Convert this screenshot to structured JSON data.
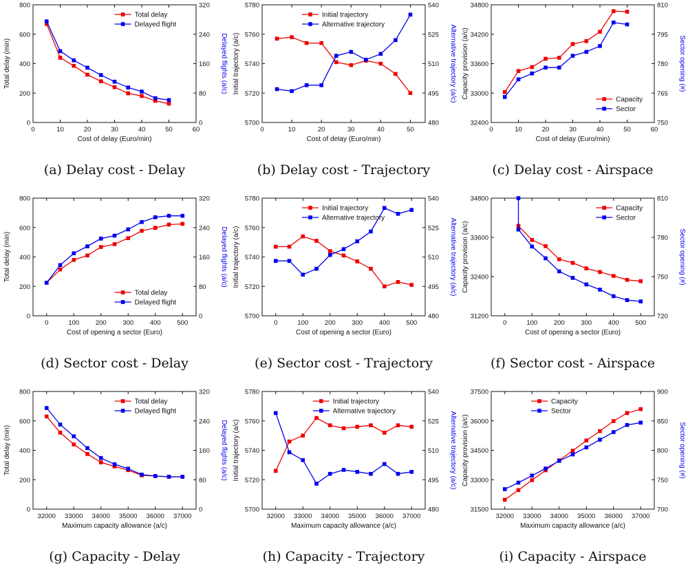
{
  "colors": {
    "series1": "#ee0000",
    "series2": "#0000ee",
    "axis": "#111111",
    "right_axis_label": "#0000ee"
  },
  "chart_data": [
    {
      "caption": "(a) Delay cost - Delay",
      "type": "line",
      "xlabel": "Cost of delay (Euro/min)",
      "ylabel": "Total delay (min)",
      "ylabel_right": "Delayed flights (a/c)",
      "xlim": [
        0,
        60
      ],
      "xticks": [
        0,
        10,
        20,
        30,
        40,
        50,
        60
      ],
      "ylim": [
        0,
        800
      ],
      "yticks": [
        0,
        200,
        400,
        600,
        800
      ],
      "ylim_right": [
        0,
        320
      ],
      "yticks_right": [
        0,
        80,
        160,
        240,
        320
      ],
      "legend": "top-right",
      "series": [
        {
          "name": "Total delay",
          "axis": "left",
          "x": [
            5,
            10,
            15,
            20,
            25,
            30,
            35,
            40,
            45,
            50
          ],
          "values": [
            670,
            440,
            385,
            325,
            280,
            240,
            198,
            180,
            147,
            128
          ]
        },
        {
          "name": "Delayed flight",
          "axis": "right",
          "x": [
            5,
            10,
            15,
            20,
            25,
            30,
            35,
            40,
            45,
            50
          ],
          "values": [
            275,
            194,
            169,
            149,
            129,
            111,
            95,
            84,
            66,
            61
          ]
        }
      ]
    },
    {
      "caption": "(b) Delay cost - Trajectory",
      "type": "line",
      "xlabel": "Cost of delay (Euro/min)",
      "ylabel": "Initial trajectory (a/c)",
      "ylabel_right": "Alternative trajectory (a/c)",
      "xlim": [
        0,
        55
      ],
      "xticks": [
        0,
        10,
        20,
        30,
        40,
        50
      ],
      "ylim": [
        5700,
        5780
      ],
      "yticks": [
        5700,
        5720,
        5740,
        5760,
        5780
      ],
      "ylim_right": [
        480,
        540
      ],
      "yticks_right": [
        480,
        495,
        510,
        525,
        540
      ],
      "legend": "top-left",
      "series": [
        {
          "name": "Initial trajectory",
          "axis": "left",
          "x": [
            5,
            10,
            15,
            20,
            25,
            30,
            35,
            40,
            45,
            50
          ],
          "values": [
            5757,
            5758,
            5754,
            5754,
            5741,
            5739,
            5742,
            5740,
            5733,
            5720
          ]
        },
        {
          "name": "Alternative trajectory",
          "axis": "right",
          "x": [
            5,
            10,
            15,
            20,
            25,
            30,
            35,
            40,
            45,
            50
          ],
          "values": [
            497,
            496,
            499,
            499,
            514,
            516,
            512,
            515,
            522,
            535
          ]
        }
      ]
    },
    {
      "caption": "(c) Delay cost - Airspace",
      "type": "line",
      "xlabel": "Cost of delay (Euro/min)",
      "ylabel": "Capacity provision (a/c)",
      "ylabel_right": "Sector opening (#)",
      "xlim": [
        0,
        60
      ],
      "xticks": [
        0,
        10,
        20,
        30,
        40,
        50,
        60
      ],
      "ylim": [
        32400,
        34800
      ],
      "yticks": [
        32400,
        33000,
        33600,
        34200,
        34800
      ],
      "ylim_right": [
        750,
        810
      ],
      "yticks_right": [
        750,
        765,
        780,
        795,
        810
      ],
      "legend": "bottom-right",
      "series": [
        {
          "name": "Capacity",
          "axis": "left",
          "x": [
            5,
            10,
            15,
            20,
            25,
            30,
            35,
            40,
            45,
            50
          ],
          "values": [
            33020,
            33450,
            33530,
            33700,
            33720,
            34000,
            34060,
            34250,
            34670,
            34660
          ]
        },
        {
          "name": "Sector",
          "axis": "right",
          "x": [
            5,
            10,
            15,
            20,
            25,
            30,
            35,
            40,
            45,
            50
          ],
          "values": [
            763,
            772,
            775,
            778,
            778,
            784,
            786,
            789,
            801,
            800
          ]
        }
      ]
    },
    {
      "caption": "(d) Sector cost - Delay",
      "type": "line",
      "xlabel": "Cost of opening a sector (Euro)",
      "ylabel": "Total delay (min)",
      "ylabel_right": "Delayed flights (a/c)",
      "xlim": [
        -50,
        550
      ],
      "xticks": [
        0,
        100,
        200,
        300,
        400,
        500
      ],
      "ylim": [
        0,
        800
      ],
      "yticks": [
        0,
        200,
        400,
        600,
        800
      ],
      "ylim_right": [
        0,
        320
      ],
      "yticks_right": [
        0,
        80,
        160,
        240,
        320
      ],
      "legend": "bottom-right",
      "series": [
        {
          "name": "Total delay",
          "axis": "left",
          "x": [
            0,
            50,
            100,
            150,
            200,
            250,
            300,
            350,
            400,
            450,
            500
          ],
          "values": [
            225,
            315,
            380,
            410,
            468,
            487,
            528,
            578,
            598,
            620,
            625
          ]
        },
        {
          "name": "Delayed flight",
          "axis": "right",
          "x": [
            0,
            50,
            100,
            150,
            200,
            250,
            300,
            350,
            400,
            450,
            500
          ],
          "values": [
            90,
            138,
            170,
            189,
            210,
            218,
            235,
            255,
            268,
            272,
            272
          ]
        }
      ]
    },
    {
      "caption": "(e) Sector cost - Trajectory",
      "type": "line",
      "xlabel": "Cost of opening a sector (Euro)",
      "ylabel": "Initial trajectory (a/c)",
      "ylabel_right": "Alternative trajectory (a/c)",
      "xlim": [
        -50,
        550
      ],
      "xticks": [
        0,
        100,
        200,
        300,
        400,
        500
      ],
      "ylim": [
        5700,
        5780
      ],
      "yticks": [
        5700,
        5720,
        5740,
        5760,
        5780
      ],
      "ylim_right": [
        480,
        540
      ],
      "yticks_right": [
        480,
        495,
        510,
        525,
        540
      ],
      "legend": "top-left",
      "series": [
        {
          "name": "Initial trajectory",
          "axis": "left",
          "x": [
            0,
            50,
            100,
            150,
            200,
            250,
            300,
            350,
            400,
            450,
            500
          ],
          "values": [
            5747,
            5747,
            5754,
            5751,
            5744,
            5741,
            5737,
            5732,
            5720,
            5723,
            5721
          ]
        },
        {
          "name": "Alternative trajectory",
          "axis": "right",
          "x": [
            0,
            50,
            100,
            150,
            200,
            250,
            300,
            350,
            400,
            450,
            500
          ],
          "values": [
            508,
            508,
            501,
            504,
            511,
            514,
            518,
            523,
            535,
            532,
            534
          ]
        }
      ]
    },
    {
      "caption": "(f) Sector cost - Airspace",
      "type": "line",
      "xlabel": "Cost of opening a sector (Euro)",
      "ylabel": "Capacity provision (a/c)",
      "ylabel_right": "Sector opening (#)",
      "xlim": [
        -50,
        550
      ],
      "xticks": [
        0,
        100,
        200,
        300,
        400,
        500
      ],
      "ylim": [
        31200,
        34800
      ],
      "yticks": [
        31200,
        32400,
        33600,
        34800
      ],
      "ylim_right": [
        720,
        810
      ],
      "yticks_right": [
        720,
        750,
        780,
        810
      ],
      "legend": "top-right",
      "series": [
        {
          "name": "Capacity",
          "axis": "left",
          "x": [
            50,
            100,
            150,
            200,
            250,
            300,
            350,
            400,
            450,
            500
          ],
          "values": [
            33950,
            33520,
            33330,
            32930,
            32820,
            32650,
            32540,
            32420,
            32300,
            32260
          ]
        },
        {
          "name": "Sector",
          "axis": "right",
          "x": [
            50,
            50,
            100,
            150,
            200,
            250,
            300,
            350,
            400,
            450,
            500
          ],
          "values": [
            810,
            786,
            773,
            764,
            754,
            749,
            744,
            740,
            735,
            732,
            731
          ]
        }
      ]
    },
    {
      "caption": "(g) Capacity - Delay",
      "type": "line",
      "xlabel": "Maximum capacity allowance (a/c)",
      "ylabel": "Total delay (min)",
      "ylabel_right": "Delayed flights (a/c)",
      "xlim": [
        31500,
        37500
      ],
      "xticks": [
        32000,
        33000,
        34000,
        35000,
        36000,
        37000
      ],
      "ylim": [
        0,
        800
      ],
      "yticks": [
        0,
        200,
        400,
        600,
        800
      ],
      "ylim_right": [
        0,
        320
      ],
      "yticks_right": [
        0,
        80,
        160,
        240,
        320
      ],
      "legend": "top-right",
      "series": [
        {
          "name": "Total delay",
          "axis": "left",
          "x": [
            32000,
            32500,
            33000,
            33500,
            34000,
            34500,
            35000,
            35500,
            36000,
            36500,
            37000
          ],
          "values": [
            630,
            520,
            440,
            375,
            318,
            290,
            265,
            230,
            225,
            220,
            220
          ]
        },
        {
          "name": "Delayed flight",
          "axis": "right",
          "x": [
            32000,
            32500,
            33000,
            33500,
            34000,
            34500,
            35000,
            35500,
            36000,
            36500,
            37000
          ],
          "values": [
            275,
            230,
            198,
            166,
            139,
            122,
            110,
            94,
            90,
            88,
            88
          ]
        }
      ]
    },
    {
      "caption": "(h) Capacity - Trajectory",
      "type": "line",
      "xlabel": "Maximum capacity allowance (a/c)",
      "ylabel": "Initial trajectory (a/c)",
      "ylabel_right": "Alternative trajectory (a/c)",
      "xlim": [
        31500,
        37500
      ],
      "xticks": [
        32000,
        33000,
        34000,
        35000,
        36000,
        37000
      ],
      "ylim": [
        5700,
        5780
      ],
      "yticks": [
        5700,
        5720,
        5740,
        5760,
        5780
      ],
      "ylim_right": [
        480,
        540
      ],
      "yticks_right": [
        480,
        495,
        510,
        525,
        540
      ],
      "legend": "top-right",
      "series": [
        {
          "name": "Initial trajectory",
          "axis": "left",
          "x": [
            32000,
            32500,
            33000,
            33500,
            34000,
            34500,
            35000,
            35500,
            36000,
            36500,
            37000
          ],
          "values": [
            5726,
            5746,
            5750,
            5762,
            5757,
            5755,
            5756,
            5757,
            5752,
            5757,
            5756
          ]
        },
        {
          "name": "Alternative trajectory",
          "axis": "right",
          "x": [
            32000,
            32500,
            33000,
            33500,
            34000,
            34500,
            35000,
            35500,
            36000,
            36500,
            37000
          ],
          "values": [
            529,
            509,
            505,
            493,
            498,
            500,
            499,
            498,
            503,
            498,
            499
          ]
        }
      ]
    },
    {
      "caption": "(i) Capacity - Airspace",
      "type": "line",
      "xlabel": "Maximum capacity allowance (a/c)",
      "ylabel": "Capacity provision (a/c)",
      "ylabel_right": "Sector opening (#)",
      "xlim": [
        31500,
        37500
      ],
      "xticks": [
        32000,
        33000,
        34000,
        35000,
        36000,
        37000
      ],
      "ylim": [
        31500,
        37500
      ],
      "yticks": [
        31500,
        33000,
        34500,
        36000,
        37500
      ],
      "ylim_right": [
        700,
        900
      ],
      "yticks_right": [
        700,
        750,
        800,
        850,
        900
      ],
      "legend": "top-left",
      "series": [
        {
          "name": "Capacity",
          "axis": "left",
          "x": [
            32000,
            32500,
            33000,
            33500,
            34000,
            34500,
            35000,
            35500,
            36000,
            36500,
            37000
          ],
          "values": [
            31980,
            32470,
            32980,
            33480,
            33990,
            34480,
            35000,
            35480,
            35990,
            36400,
            36600
          ]
        },
        {
          "name": "Sector",
          "axis": "right",
          "x": [
            32000,
            32500,
            33000,
            33500,
            34000,
            34500,
            35000,
            35500,
            36000,
            36500,
            37000
          ],
          "values": [
            734,
            745,
            757,
            769,
            782,
            793,
            805,
            818,
            831,
            843,
            847
          ]
        }
      ]
    }
  ]
}
